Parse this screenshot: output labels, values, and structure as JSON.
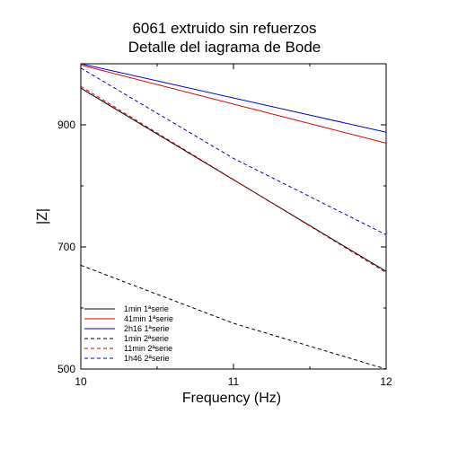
{
  "chart_data": {
    "type": "line",
    "title": [
      "6061 extruido sin refuerzos",
      "Detalle del iagrama de Bode"
    ],
    "xlabel": "Frequency (Hz)",
    "ylabel": "|Z|",
    "xlim": [
      10,
      12
    ],
    "ylim": [
      500,
      1000
    ],
    "xticks": [
      10,
      11,
      12
    ],
    "xtick_labels": [
      "10",
      "11",
      "12"
    ],
    "yticks": [
      500,
      700,
      900
    ],
    "ytick_labels": [
      "500",
      "700",
      "900"
    ],
    "grid": false,
    "legend_position": "bottom-left",
    "series": [
      {
        "name": "1min 1ªserie",
        "color": "#000000",
        "dash": "solid",
        "values": [
          [
            10,
            960
          ],
          [
            12,
            660
          ]
        ]
      },
      {
        "name": "41min 1ªserie",
        "color": "#dd0000",
        "dash": "solid",
        "values": [
          [
            10,
            998
          ],
          [
            12,
            870
          ]
        ]
      },
      {
        "name": "2h16 1ªserie",
        "color": "#0000cc",
        "dash": "solid",
        "values": [
          [
            10,
            1000
          ],
          [
            12,
            888
          ]
        ]
      },
      {
        "name": "1min 2ªserie",
        "color": "#000000",
        "dash": "dashed",
        "values": [
          [
            10,
            670
          ],
          [
            11,
            575
          ],
          [
            12,
            500
          ]
        ]
      },
      {
        "name": "11min 2ªserie",
        "color": "#dd0000",
        "dash": "dashed",
        "values": [
          [
            10,
            963
          ],
          [
            12,
            658
          ]
        ]
      },
      {
        "name": "1h46 2ªserie",
        "color": "#0000cc",
        "dash": "dashed",
        "values": [
          [
            10,
            993
          ],
          [
            11,
            845
          ],
          [
            12,
            720
          ]
        ]
      }
    ]
  }
}
